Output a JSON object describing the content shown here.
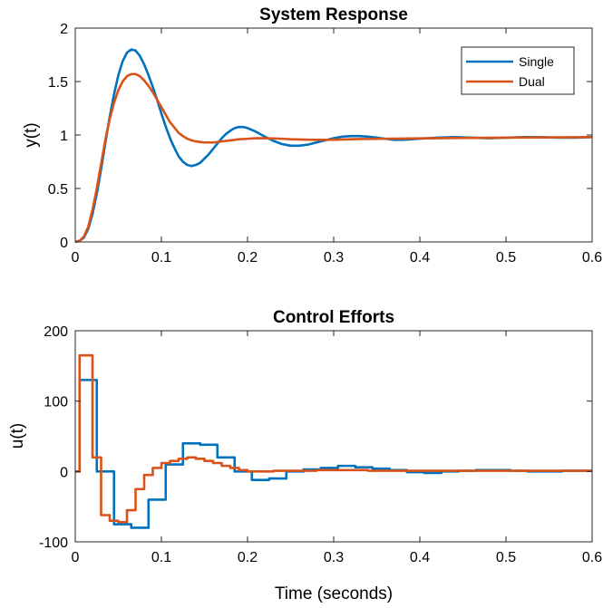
{
  "chart_data": [
    {
      "type": "line",
      "title": "System Response",
      "xlabel": "",
      "ylabel": "y(t)",
      "xlim": [
        0,
        0.6
      ],
      "ylim": [
        0,
        2
      ],
      "xticks": [
        0,
        0.1,
        0.2,
        0.3,
        0.4,
        0.5,
        0.6
      ],
      "xtick_labels": [
        "0",
        "0.1",
        "0.2",
        "0.3",
        "0.4",
        "0.5",
        "0.6"
      ],
      "yticks": [
        0,
        0.5,
        1,
        1.5,
        2
      ],
      "ytick_labels": [
        "0",
        "0.5",
        "1",
        "1.5",
        "2"
      ],
      "grid": false,
      "legend": {
        "placement": "top-right"
      },
      "series": [
        {
          "name": "Single",
          "color": "#0072BD",
          "x": [
            0,
            0.005,
            0.01,
            0.015,
            0.02,
            0.025,
            0.03,
            0.035,
            0.04,
            0.045,
            0.05,
            0.055,
            0.06,
            0.065,
            0.07,
            0.075,
            0.08,
            0.085,
            0.09,
            0.095,
            0.1,
            0.105,
            0.11,
            0.115,
            0.12,
            0.125,
            0.13,
            0.135,
            0.14,
            0.145,
            0.15,
            0.155,
            0.16,
            0.165,
            0.17,
            0.175,
            0.18,
            0.185,
            0.19,
            0.195,
            0.2,
            0.21,
            0.22,
            0.23,
            0.24,
            0.25,
            0.26,
            0.27,
            0.28,
            0.29,
            0.3,
            0.31,
            0.32,
            0.33,
            0.34,
            0.35,
            0.36,
            0.37,
            0.38,
            0.39,
            0.4,
            0.42,
            0.44,
            0.46,
            0.48,
            0.5,
            0.52,
            0.54,
            0.56,
            0.58,
            0.6
          ],
          "y": [
            0,
            0.01,
            0.04,
            0.12,
            0.26,
            0.45,
            0.68,
            0.93,
            1.17,
            1.38,
            1.56,
            1.69,
            1.77,
            1.8,
            1.79,
            1.74,
            1.66,
            1.56,
            1.45,
            1.33,
            1.2,
            1.08,
            0.97,
            0.88,
            0.8,
            0.75,
            0.72,
            0.71,
            0.72,
            0.74,
            0.78,
            0.82,
            0.87,
            0.92,
            0.97,
            1.01,
            1.04,
            1.065,
            1.075,
            1.075,
            1.065,
            1.03,
            0.985,
            0.945,
            0.915,
            0.9,
            0.9,
            0.91,
            0.93,
            0.95,
            0.97,
            0.985,
            0.99,
            0.99,
            0.985,
            0.975,
            0.965,
            0.955,
            0.955,
            0.96,
            0.965,
            0.975,
            0.98,
            0.975,
            0.97,
            0.975,
            0.98,
            0.98,
            0.975,
            0.975,
            0.98
          ]
        },
        {
          "name": "Dual",
          "color": "#D95319",
          "x": [
            0,
            0.005,
            0.01,
            0.015,
            0.02,
            0.025,
            0.03,
            0.035,
            0.04,
            0.045,
            0.05,
            0.055,
            0.06,
            0.065,
            0.07,
            0.075,
            0.08,
            0.085,
            0.09,
            0.095,
            0.1,
            0.105,
            0.11,
            0.115,
            0.12,
            0.125,
            0.13,
            0.135,
            0.14,
            0.145,
            0.15,
            0.155,
            0.16,
            0.165,
            0.17,
            0.175,
            0.18,
            0.185,
            0.19,
            0.195,
            0.2,
            0.21,
            0.22,
            0.23,
            0.24,
            0.25,
            0.26,
            0.27,
            0.28,
            0.29,
            0.3,
            0.31,
            0.32,
            0.33,
            0.34,
            0.35,
            0.36,
            0.37,
            0.38,
            0.39,
            0.4,
            0.42,
            0.44,
            0.46,
            0.48,
            0.5,
            0.52,
            0.54,
            0.56,
            0.58,
            0.6
          ],
          "y": [
            0,
            0.01,
            0.05,
            0.14,
            0.3,
            0.5,
            0.73,
            0.96,
            1.15,
            1.3,
            1.42,
            1.5,
            1.55,
            1.57,
            1.57,
            1.55,
            1.51,
            1.46,
            1.4,
            1.33,
            1.26,
            1.19,
            1.12,
            1.07,
            1.02,
            0.99,
            0.965,
            0.95,
            0.94,
            0.935,
            0.93,
            0.93,
            0.93,
            0.935,
            0.94,
            0.945,
            0.95,
            0.955,
            0.96,
            0.962,
            0.965,
            0.97,
            0.97,
            0.968,
            0.965,
            0.96,
            0.958,
            0.956,
            0.955,
            0.955,
            0.956,
            0.958,
            0.96,
            0.962,
            0.963,
            0.964,
            0.965,
            0.966,
            0.967,
            0.968,
            0.969,
            0.97,
            0.972,
            0.973,
            0.974,
            0.975,
            0.976,
            0.977,
            0.978,
            0.979,
            0.98
          ]
        }
      ]
    },
    {
      "type": "line",
      "step": true,
      "title": "Control Efforts",
      "xlabel": "Time (seconds)",
      "ylabel": "u(t)",
      "xlim": [
        0,
        0.6
      ],
      "ylim": [
        -100,
        200
      ],
      "xticks": [
        0,
        0.1,
        0.2,
        0.3,
        0.4,
        0.5,
        0.6
      ],
      "xtick_labels": [
        "0",
        "0.1",
        "0.2",
        "0.3",
        "0.4",
        "0.5",
        "0.6"
      ],
      "yticks": [
        -100,
        0,
        100,
        200
      ],
      "ytick_labels": [
        "-100",
        "0",
        "100",
        "200"
      ],
      "grid": false,
      "series": [
        {
          "name": "Single",
          "color": "#0072BD",
          "x": [
            0,
            0.005,
            0.025,
            0.045,
            0.065,
            0.085,
            0.105,
            0.125,
            0.145,
            0.165,
            0.185,
            0.205,
            0.225,
            0.245,
            0.265,
            0.285,
            0.305,
            0.325,
            0.345,
            0.365,
            0.385,
            0.405,
            0.425,
            0.445,
            0.465,
            0.485,
            0.505,
            0.525,
            0.545,
            0.565,
            0.585,
            0.6
          ],
          "y": [
            0,
            130,
            0,
            -75,
            -80,
            -40,
            10,
            40,
            38,
            20,
            0,
            -12,
            -10,
            0,
            3,
            5,
            8,
            6,
            4,
            2,
            -1,
            -2,
            0,
            1,
            2,
            2,
            1,
            0,
            0,
            1,
            1,
            1
          ]
        },
        {
          "name": "Dual",
          "color": "#D95319",
          "x": [
            0,
            0.005,
            0.02,
            0.03,
            0.04,
            0.05,
            0.06,
            0.07,
            0.08,
            0.09,
            0.1,
            0.11,
            0.12,
            0.13,
            0.14,
            0.15,
            0.16,
            0.17,
            0.18,
            0.19,
            0.2,
            0.21,
            0.22,
            0.23,
            0.24,
            0.25,
            0.26,
            0.28,
            0.3,
            0.32,
            0.34,
            0.36,
            0.38,
            0.4,
            0.44,
            0.48,
            0.52,
            0.56,
            0.6
          ],
          "y": [
            0,
            165,
            20,
            -62,
            -70,
            -72,
            -55,
            -25,
            -5,
            5,
            12,
            15,
            18,
            20,
            18,
            15,
            12,
            8,
            5,
            2,
            0,
            0,
            0,
            1,
            1,
            1,
            1,
            2,
            2,
            2,
            1,
            1,
            1,
            1,
            1,
            1,
            1,
            1,
            1
          ]
        }
      ]
    }
  ]
}
